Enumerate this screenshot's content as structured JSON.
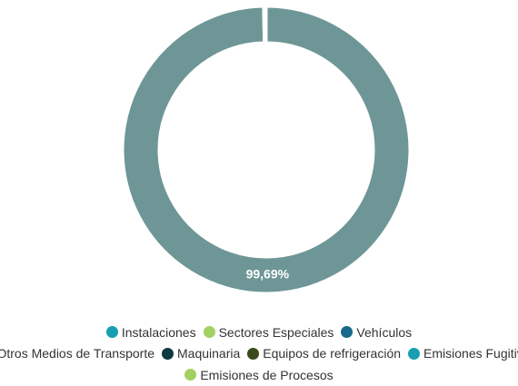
{
  "chart_data": {
    "type": "donut",
    "categories": [
      "Instalaciones",
      "Sectores Especiales",
      "Vehículos",
      "Otros Medios de Transporte",
      "Maquinaria",
      "Equipos de refrigeración",
      "Emisiones Fugitivas",
      "Emisiones de Procesos"
    ],
    "values": [
      0,
      0,
      0,
      99.69,
      0.31,
      0,
      0,
      0
    ],
    "value_labels": [
      null,
      null,
      null,
      "99,69%",
      null,
      null,
      null,
      null
    ],
    "colors": [
      "#179fb1",
      "#a2d063",
      "#17688a",
      "#6e9696",
      "#0e3a42",
      "#3b4a1d",
      "#179fb1",
      "#a2d063"
    ]
  }
}
